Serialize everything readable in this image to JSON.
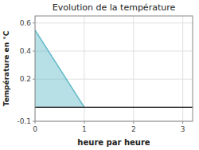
{
  "chart_data": {
    "type": "area",
    "title": "Evolution de la température",
    "x_label": "heure par heure",
    "y_label": "Température en °C",
    "x": [
      0,
      1
    ],
    "values": [
      0.55,
      0.0
    ],
    "color": "#60b8c8",
    "xlim": [
      0,
      3.2
    ],
    "ylim": [
      -0.1,
      0.65
    ],
    "xticks": [
      0,
      1,
      2,
      3
    ],
    "yticks": [
      -0.1,
      0.2,
      0.4,
      0.6
    ],
    "grid": true
  }
}
